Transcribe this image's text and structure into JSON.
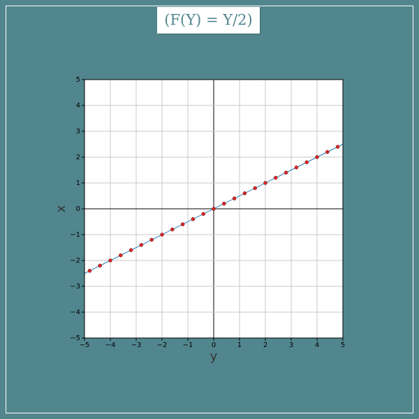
{
  "chart_data": {
    "type": "scatter",
    "title": "(F(Y) = Y/2)",
    "x_label": "y",
    "y_label": "x",
    "xlim": [
      -5,
      5
    ],
    "ylim": [
      -5,
      5
    ],
    "xticks": [
      {
        "value": -5,
        "label": "−5"
      },
      {
        "value": -4,
        "label": "−4"
      },
      {
        "value": -3,
        "label": "−3"
      },
      {
        "value": -2,
        "label": "−2"
      },
      {
        "value": -1,
        "label": "−1"
      },
      0,
      1,
      2,
      3,
      4,
      5
    ],
    "yticks": [
      {
        "value": -5,
        "label": "−5"
      },
      {
        "value": -4,
        "label": "−4"
      },
      {
        "value": -3,
        "label": "−3"
      },
      {
        "value": -2,
        "label": "−2"
      },
      {
        "value": -1,
        "label": "−1"
      },
      0,
      1,
      2,
      3,
      4,
      5
    ],
    "grid": true,
    "series": [
      {
        "kind": "line",
        "color": "#1f77b4",
        "x": [
          -5,
          5
        ],
        "values": [
          -2.5,
          2.5
        ]
      },
      {
        "kind": "points",
        "color": "#d62728",
        "x": [
          -4.8,
          -4.4,
          -4,
          -3.6,
          -3.2,
          -2.8,
          -2.4,
          -2,
          -1.6,
          -1.2,
          -0.8,
          -0.4,
          0,
          0.4,
          0.8,
          1.2,
          1.6,
          2,
          2.4,
          2.8,
          3.2,
          3.6,
          4,
          4.4,
          4.8
        ],
        "values": [
          -2.4,
          -2.2,
          -2,
          -1.8,
          -1.6,
          -1.4,
          -1.2,
          -1,
          -0.8,
          -0.6,
          -0.4,
          -0.2,
          0,
          0.2,
          0.4,
          0.6,
          0.8,
          1,
          1.2,
          1.4,
          1.6,
          1.8,
          2,
          2.2,
          2.4
        ]
      }
    ]
  }
}
